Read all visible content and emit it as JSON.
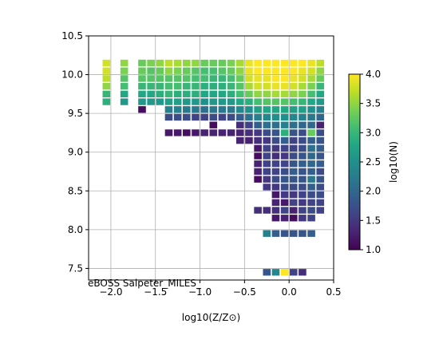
{
  "chart_data": {
    "type": "heatmap",
    "title": "",
    "annotation": "eBOSS Salpeter_MILES_",
    "xlabel": "log10(Z/Z⊙)",
    "ylabel": "",
    "xlim": [
      -2.25,
      0.5
    ],
    "ylim": [
      7.35,
      10.5
    ],
    "x_ticks": [
      -2.0,
      -1.5,
      -1.0,
      -0.5,
      0.0,
      0.5
    ],
    "x_tick_labels": [
      "−2.0",
      "−1.5",
      "−1.0",
      "−0.5",
      "0.0",
      "0.5"
    ],
    "y_ticks": [
      7.5,
      8.0,
      8.5,
      9.0,
      9.5,
      10.0,
      10.5
    ],
    "y_tick_labels": [
      "7.5",
      "8.0",
      "8.5",
      "9.0",
      "9.5",
      "10.0",
      "10.5"
    ],
    "grid": true,
    "colormap": "viridis",
    "colorbar": {
      "label": "log10(N)",
      "range": [
        1.0,
        4.0
      ],
      "ticks": [
        1.0,
        1.5,
        2.0,
        2.5,
        3.0,
        3.5,
        4.0
      ],
      "tick_labels": [
        "1.0",
        "1.5",
        "2.0",
        "2.5",
        "3.0",
        "3.5",
        "4.0"
      ]
    },
    "x_bins": [
      -2.05,
      -1.85,
      -1.65,
      -1.55,
      -1.45,
      -1.35,
      -1.25,
      -1.15,
      -1.05,
      -0.95,
      -0.85,
      -0.75,
      -0.65,
      -0.55,
      -0.45,
      -0.35,
      -0.25,
      -0.15,
      -0.05,
      0.05,
      0.15,
      0.25,
      0.35
    ],
    "cells": [
      [
        -2.05,
        10.15,
        3.8
      ],
      [
        -2.05,
        10.05,
        3.8
      ],
      [
        -2.05,
        9.95,
        3.7
      ],
      [
        -2.05,
        9.85,
        3.5
      ],
      [
        -2.05,
        9.75,
        3.0
      ],
      [
        -2.05,
        9.65,
        2.9
      ],
      [
        -1.85,
        10.15,
        3.5
      ],
      [
        -1.85,
        10.05,
        3.4
      ],
      [
        -1.85,
        9.95,
        3.2
      ],
      [
        -1.85,
        9.85,
        3.1
      ],
      [
        -1.85,
        9.75,
        2.8
      ],
      [
        -1.85,
        9.65,
        2.6
      ],
      [
        -1.65,
        10.15,
        3.3
      ],
      [
        -1.65,
        10.05,
        3.3
      ],
      [
        -1.65,
        9.95,
        3.2
      ],
      [
        -1.65,
        9.85,
        3.0
      ],
      [
        -1.65,
        9.75,
        2.8
      ],
      [
        -1.65,
        9.65,
        2.6
      ],
      [
        -1.65,
        9.55,
        1.1
      ],
      [
        -1.55,
        10.15,
        3.4
      ],
      [
        -1.55,
        10.05,
        3.2
      ],
      [
        -1.55,
        9.95,
        3.2
      ],
      [
        -1.55,
        9.85,
        3.0
      ],
      [
        -1.55,
        9.75,
        2.8
      ],
      [
        -1.55,
        9.65,
        2.6
      ],
      [
        -1.45,
        10.15,
        3.5
      ],
      [
        -1.45,
        10.05,
        3.3
      ],
      [
        -1.45,
        9.95,
        3.2
      ],
      [
        -1.45,
        9.85,
        3.0
      ],
      [
        -1.45,
        9.75,
        2.9
      ],
      [
        -1.45,
        9.65,
        2.6
      ],
      [
        -1.35,
        10.15,
        3.7
      ],
      [
        -1.35,
        10.05,
        3.5
      ],
      [
        -1.35,
        9.95,
        3.2
      ],
      [
        -1.35,
        9.85,
        3.1
      ],
      [
        -1.35,
        9.75,
        3.0
      ],
      [
        -1.35,
        9.65,
        2.7
      ],
      [
        -1.35,
        9.55,
        2.3
      ],
      [
        -1.35,
        9.45,
        1.7
      ],
      [
        -1.35,
        9.25,
        1.2
      ],
      [
        -1.25,
        10.15,
        3.6
      ],
      [
        -1.25,
        10.05,
        3.4
      ],
      [
        -1.25,
        9.95,
        3.2
      ],
      [
        -1.25,
        9.85,
        3.1
      ],
      [
        -1.25,
        9.75,
        2.9
      ],
      [
        -1.25,
        9.65,
        2.7
      ],
      [
        -1.25,
        9.55,
        2.3
      ],
      [
        -1.25,
        9.45,
        1.7
      ],
      [
        -1.25,
        9.25,
        1.2
      ],
      [
        -1.15,
        10.15,
        3.5
      ],
      [
        -1.15,
        10.05,
        3.3
      ],
      [
        -1.15,
        9.95,
        3.2
      ],
      [
        -1.15,
        9.85,
        3.0
      ],
      [
        -1.15,
        9.75,
        2.9
      ],
      [
        -1.15,
        9.65,
        2.6
      ],
      [
        -1.15,
        9.55,
        2.2
      ],
      [
        -1.15,
        9.45,
        1.7
      ],
      [
        -1.15,
        9.25,
        1.1
      ],
      [
        -1.05,
        10.15,
        3.5
      ],
      [
        -1.05,
        10.05,
        3.2
      ],
      [
        -1.05,
        9.95,
        3.1
      ],
      [
        -1.05,
        9.85,
        3.0
      ],
      [
        -1.05,
        9.75,
        2.9
      ],
      [
        -1.05,
        9.65,
        2.6
      ],
      [
        -1.05,
        9.55,
        2.2
      ],
      [
        -1.05,
        9.45,
        1.6
      ],
      [
        -1.05,
        9.25,
        1.2
      ],
      [
        -0.95,
        10.15,
        3.3
      ],
      [
        -0.95,
        10.05,
        3.1
      ],
      [
        -0.95,
        9.95,
        3.1
      ],
      [
        -0.95,
        9.85,
        2.9
      ],
      [
        -0.95,
        9.75,
        2.8
      ],
      [
        -0.95,
        9.65,
        2.5
      ],
      [
        -0.95,
        9.55,
        2.1
      ],
      [
        -0.95,
        9.45,
        1.6
      ],
      [
        -0.95,
        9.25,
        1.3
      ],
      [
        -0.85,
        10.15,
        3.3
      ],
      [
        -0.85,
        10.05,
        3.1
      ],
      [
        -0.85,
        9.95,
        3.0
      ],
      [
        -0.85,
        9.85,
        2.9
      ],
      [
        -0.85,
        9.75,
        2.8
      ],
      [
        -0.85,
        9.65,
        2.6
      ],
      [
        -0.85,
        9.55,
        2.2
      ],
      [
        -0.85,
        9.45,
        1.7
      ],
      [
        -0.85,
        9.35,
        1.1
      ],
      [
        -0.85,
        9.25,
        1.3
      ],
      [
        -0.75,
        10.15,
        3.3
      ],
      [
        -0.75,
        10.05,
        3.2
      ],
      [
        -0.75,
        9.95,
        3.0
      ],
      [
        -0.75,
        9.85,
        2.9
      ],
      [
        -0.75,
        9.75,
        2.8
      ],
      [
        -0.75,
        9.65,
        2.6
      ],
      [
        -0.75,
        9.55,
        2.2
      ],
      [
        -0.75,
        9.45,
        1.6
      ],
      [
        -0.75,
        9.25,
        1.3
      ],
      [
        -0.65,
        10.15,
        3.4
      ],
      [
        -0.65,
        10.05,
        3.3
      ],
      [
        -0.65,
        9.95,
        3.1
      ],
      [
        -0.65,
        9.85,
        3.0
      ],
      [
        -0.65,
        9.75,
        2.9
      ],
      [
        -0.65,
        9.65,
        2.6
      ],
      [
        -0.65,
        9.55,
        2.2
      ],
      [
        -0.65,
        9.45,
        1.7
      ],
      [
        -0.65,
        9.25,
        1.3
      ],
      [
        -0.55,
        10.15,
        3.6
      ],
      [
        -0.55,
        10.05,
        3.5
      ],
      [
        -0.55,
        9.95,
        3.3
      ],
      [
        -0.55,
        9.85,
        3.2
      ],
      [
        -0.55,
        9.75,
        3.1
      ],
      [
        -0.55,
        9.65,
        2.8
      ],
      [
        -0.55,
        9.55,
        2.4
      ],
      [
        -0.55,
        9.45,
        1.9
      ],
      [
        -0.55,
        9.35,
        1.4
      ],
      [
        -0.55,
        9.25,
        1.3
      ],
      [
        -0.55,
        9.15,
        1.3
      ],
      [
        -0.45,
        10.15,
        3.9
      ],
      [
        -0.45,
        10.05,
        3.9
      ],
      [
        -0.45,
        9.95,
        3.8
      ],
      [
        -0.45,
        9.85,
        3.6
      ],
      [
        -0.45,
        9.75,
        3.3
      ],
      [
        -0.45,
        9.65,
        2.9
      ],
      [
        -0.45,
        9.55,
        2.5
      ],
      [
        -0.45,
        9.45,
        2.1
      ],
      [
        -0.45,
        9.35,
        1.6
      ],
      [
        -0.45,
        9.25,
        1.4
      ],
      [
        -0.45,
        9.15,
        1.3
      ],
      [
        -0.35,
        10.15,
        4.0
      ],
      [
        -0.35,
        10.05,
        4.0
      ],
      [
        -0.35,
        9.95,
        3.9
      ],
      [
        -0.35,
        9.85,
        3.8
      ],
      [
        -0.35,
        9.75,
        3.5
      ],
      [
        -0.35,
        9.65,
        3.1
      ],
      [
        -0.35,
        9.55,
        2.7
      ],
      [
        -0.35,
        9.45,
        2.3
      ],
      [
        -0.35,
        9.35,
        1.9
      ],
      [
        -0.35,
        9.25,
        1.5
      ],
      [
        -0.35,
        9.15,
        1.4
      ],
      [
        -0.35,
        9.05,
        1.2
      ],
      [
        -0.35,
        8.95,
        1.1
      ],
      [
        -0.35,
        8.85,
        1.3
      ],
      [
        -0.35,
        8.75,
        1.3
      ],
      [
        -0.35,
        8.65,
        1.1
      ],
      [
        -0.35,
        8.25,
        1.4
      ],
      [
        -0.25,
        10.15,
        4.0
      ],
      [
        -0.25,
        10.05,
        4.0
      ],
      [
        -0.25,
        9.95,
        3.9
      ],
      [
        -0.25,
        9.85,
        3.8
      ],
      [
        -0.25,
        9.75,
        3.5
      ],
      [
        -0.25,
        9.65,
        3.2
      ],
      [
        -0.25,
        9.55,
        2.8
      ],
      [
        -0.25,
        9.45,
        2.4
      ],
      [
        -0.25,
        9.35,
        2.1
      ],
      [
        -0.25,
        9.25,
        1.7
      ],
      [
        -0.25,
        9.15,
        1.5
      ],
      [
        -0.25,
        9.05,
        1.6
      ],
      [
        -0.25,
        8.95,
        1.6
      ],
      [
        -0.25,
        8.85,
        1.6
      ],
      [
        -0.25,
        8.75,
        1.6
      ],
      [
        -0.25,
        8.65,
        1.5
      ],
      [
        -0.25,
        8.55,
        1.5
      ],
      [
        -0.25,
        8.25,
        1.4
      ],
      [
        -0.25,
        7.95,
        2.3
      ],
      [
        -0.25,
        7.45,
        1.8
      ],
      [
        -0.15,
        10.15,
        4.0
      ],
      [
        -0.15,
        10.05,
        4.0
      ],
      [
        -0.15,
        9.95,
        4.0
      ],
      [
        -0.15,
        9.85,
        3.9
      ],
      [
        -0.15,
        9.75,
        3.6
      ],
      [
        -0.15,
        9.65,
        3.2
      ],
      [
        -0.15,
        9.55,
        2.8
      ],
      [
        -0.15,
        9.45,
        2.5
      ],
      [
        -0.15,
        9.35,
        2.1
      ],
      [
        -0.15,
        9.25,
        1.8
      ],
      [
        -0.15,
        9.15,
        1.7
      ],
      [
        -0.15,
        9.05,
        1.5
      ],
      [
        -0.15,
        8.95,
        1.4
      ],
      [
        -0.15,
        8.85,
        1.6
      ],
      [
        -0.15,
        8.75,
        1.6
      ],
      [
        -0.15,
        8.65,
        1.7
      ],
      [
        -0.15,
        8.55,
        1.5
      ],
      [
        -0.15,
        8.45,
        1.2
      ],
      [
        -0.15,
        8.35,
        1.3
      ],
      [
        -0.15,
        8.25,
        1.4
      ],
      [
        -0.15,
        8.15,
        1.2
      ],
      [
        -0.15,
        7.95,
        1.9
      ],
      [
        -0.15,
        7.45,
        2.4
      ],
      [
        -0.05,
        10.15,
        4.0
      ],
      [
        -0.05,
        10.05,
        4.0
      ],
      [
        -0.05,
        9.95,
        4.0
      ],
      [
        -0.05,
        9.85,
        3.9
      ],
      [
        -0.05,
        9.75,
        3.6
      ],
      [
        -0.05,
        9.65,
        3.2
      ],
      [
        -0.05,
        9.55,
        2.8
      ],
      [
        -0.05,
        9.45,
        2.5
      ],
      [
        -0.05,
        9.35,
        2.3
      ],
      [
        -0.05,
        9.25,
        2.9
      ],
      [
        -0.05,
        9.15,
        1.9
      ],
      [
        -0.05,
        9.05,
        1.6
      ],
      [
        -0.05,
        8.95,
        1.5
      ],
      [
        -0.05,
        8.85,
        1.6
      ],
      [
        -0.05,
        8.75,
        1.7
      ],
      [
        -0.05,
        8.65,
        1.8
      ],
      [
        -0.05,
        8.55,
        1.7
      ],
      [
        -0.05,
        8.45,
        1.5
      ],
      [
        -0.05,
        8.35,
        1.2
      ],
      [
        -0.05,
        8.25,
        1.6
      ],
      [
        -0.05,
        8.15,
        1.3
      ],
      [
        -0.05,
        7.95,
        1.8
      ],
      [
        -0.05,
        7.45,
        4.0
      ],
      [
        0.05,
        10.15,
        4.0
      ],
      [
        0.05,
        10.05,
        4.0
      ],
      [
        0.05,
        9.95,
        3.9
      ],
      [
        0.05,
        9.85,
        3.8
      ],
      [
        0.05,
        9.75,
        3.5
      ],
      [
        0.05,
        9.65,
        3.1
      ],
      [
        0.05,
        9.55,
        2.7
      ],
      [
        0.05,
        9.45,
        2.4
      ],
      [
        0.05,
        9.35,
        2.1
      ],
      [
        0.05,
        9.25,
        1.8
      ],
      [
        0.05,
        9.15,
        1.6
      ],
      [
        0.05,
        9.05,
        1.6
      ],
      [
        0.05,
        8.95,
        1.7
      ],
      [
        0.05,
        8.85,
        1.8
      ],
      [
        0.05,
        8.75,
        1.9
      ],
      [
        0.05,
        8.65,
        1.8
      ],
      [
        0.05,
        8.55,
        1.7
      ],
      [
        0.05,
        8.45,
        1.5
      ],
      [
        0.05,
        8.35,
        1.6
      ],
      [
        0.05,
        8.25,
        1.3
      ],
      [
        0.05,
        8.15,
        1.1
      ],
      [
        0.05,
        7.95,
        1.8
      ],
      [
        0.05,
        7.45,
        1.6
      ],
      [
        0.15,
        10.15,
        4.0
      ],
      [
        0.15,
        10.05,
        3.9
      ],
      [
        0.15,
        9.95,
        3.8
      ],
      [
        0.15,
        9.85,
        3.6
      ],
      [
        0.15,
        9.75,
        3.4
      ],
      [
        0.15,
        9.65,
        3.0
      ],
      [
        0.15,
        9.55,
        2.7
      ],
      [
        0.15,
        9.45,
        2.3
      ],
      [
        0.15,
        9.35,
        2.0
      ],
      [
        0.15,
        9.25,
        1.7
      ],
      [
        0.15,
        9.15,
        1.7
      ],
      [
        0.15,
        9.05,
        1.7
      ],
      [
        0.15,
        8.95,
        1.8
      ],
      [
        0.15,
        8.85,
        1.9
      ],
      [
        0.15,
        8.75,
        1.8
      ],
      [
        0.15,
        8.65,
        1.8
      ],
      [
        0.15,
        8.55,
        1.7
      ],
      [
        0.15,
        8.45,
        1.6
      ],
      [
        0.15,
        8.35,
        1.5
      ],
      [
        0.15,
        8.25,
        1.6
      ],
      [
        0.15,
        8.15,
        1.5
      ],
      [
        0.15,
        7.95,
        1.8
      ],
      [
        0.15,
        7.45,
        1.4
      ],
      [
        0.25,
        10.15,
        3.9
      ],
      [
        0.25,
        10.05,
        3.8
      ],
      [
        0.25,
        9.95,
        3.6
      ],
      [
        0.25,
        9.85,
        3.4
      ],
      [
        0.25,
        9.75,
        3.1
      ],
      [
        0.25,
        9.65,
        2.8
      ],
      [
        0.25,
        9.55,
        2.5
      ],
      [
        0.25,
        9.45,
        2.2
      ],
      [
        0.25,
        9.35,
        2.0
      ],
      [
        0.25,
        9.25,
        3.3
      ],
      [
        0.25,
        9.15,
        1.9
      ],
      [
        0.25,
        9.05,
        2.1
      ],
      [
        0.25,
        8.95,
        2.0
      ],
      [
        0.25,
        8.85,
        2.0
      ],
      [
        0.25,
        8.75,
        1.9
      ],
      [
        0.25,
        8.65,
        2.2
      ],
      [
        0.25,
        8.55,
        1.9
      ],
      [
        0.25,
        8.45,
        1.7
      ],
      [
        0.25,
        8.35,
        1.6
      ],
      [
        0.25,
        8.25,
        1.7
      ],
      [
        0.25,
        8.15,
        1.6
      ],
      [
        0.25,
        7.95,
        1.9
      ],
      [
        0.35,
        10.15,
        3.7
      ],
      [
        0.35,
        10.05,
        3.5
      ],
      [
        0.35,
        9.95,
        3.3
      ],
      [
        0.35,
        9.85,
        3.0
      ],
      [
        0.35,
        9.75,
        2.8
      ],
      [
        0.35,
        9.65,
        2.6
      ],
      [
        0.35,
        9.55,
        2.3
      ],
      [
        0.35,
        9.45,
        2.0
      ],
      [
        0.35,
        9.35,
        1.3
      ],
      [
        0.35,
        9.25,
        1.7
      ],
      [
        0.35,
        9.15,
        1.8
      ],
      [
        0.35,
        9.05,
        1.9
      ],
      [
        0.35,
        8.95,
        1.8
      ],
      [
        0.35,
        8.85,
        1.9
      ],
      [
        0.35,
        8.75,
        1.7
      ],
      [
        0.35,
        8.65,
        1.8
      ],
      [
        0.35,
        8.55,
        1.7
      ],
      [
        0.35,
        8.45,
        1.7
      ],
      [
        0.35,
        8.35,
        1.6
      ],
      [
        0.35,
        8.25,
        1.6
      ]
    ]
  }
}
